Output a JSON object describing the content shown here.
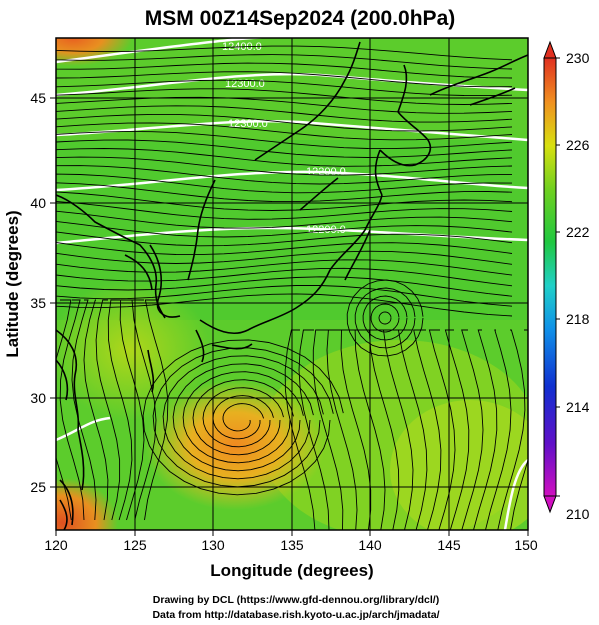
{
  "title": "MSM 00Z14Sep2024 (200.0hPa)",
  "x_axis": {
    "label": "Longitude (degrees)",
    "ticks": [
      "120",
      "125",
      "130",
      "135",
      "140",
      "145",
      "150"
    ]
  },
  "y_axis": {
    "label": "Latitude  (degrees)",
    "ticks": [
      "25",
      "30",
      "35",
      "40",
      "45"
    ]
  },
  "colorbar": {
    "labels": [
      "230",
      "226",
      "222",
      "218",
      "214",
      "210"
    ]
  },
  "contour_labels": [
    "12400.0",
    "12300.0",
    "12300.0",
    "12200.0",
    "12200.0"
  ],
  "credits": {
    "line1": "Drawing by DCL (https://www.gfd-dennou.org/library/dcl/)",
    "line2": "Data from http://database.rish.kyoto-u.ac.jp/arch/jmadata/"
  },
  "colors": {
    "low": "#d010c0",
    "mid_low": "#1030d0",
    "mid": "#20c0e0",
    "green": "#28c840",
    "yellow": "#d8e010",
    "high": "#e03020"
  }
}
